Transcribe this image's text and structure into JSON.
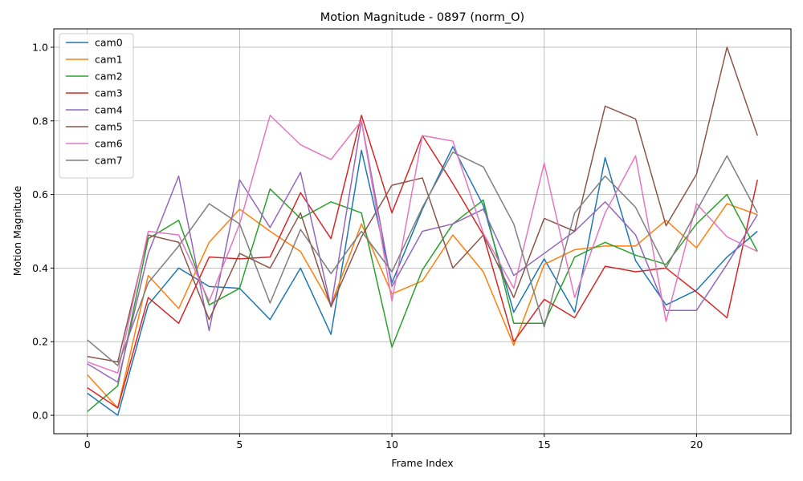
{
  "chart_data": {
    "type": "line",
    "title": "Motion Magnitude - 0897 (norm_O)",
    "xlabel": "Frame Index",
    "ylabel": "Motion Magnitude",
    "xlim": [
      -1.1,
      23.1
    ],
    "ylim": [
      -0.05,
      1.05
    ],
    "xticks": [
      0,
      5,
      10,
      15,
      20
    ],
    "yticks": [
      0.0,
      0.2,
      0.4,
      0.6,
      0.8,
      1.0
    ],
    "xtick_labels": [
      "0",
      "5",
      "10",
      "15",
      "20"
    ],
    "ytick_labels": [
      "0.0",
      "0.2",
      "0.4",
      "0.6",
      "0.8",
      "1.0"
    ],
    "grid": true,
    "legend_position": "top-left",
    "x": [
      0,
      1,
      2,
      3,
      4,
      5,
      6,
      7,
      8,
      9,
      10,
      11,
      12,
      13,
      14,
      15,
      16,
      17,
      18,
      19,
      20,
      21,
      22
    ],
    "series": [
      {
        "name": "cam0",
        "color": "#1f77b4",
        "values": [
          0.06,
          0.0,
          0.3,
          0.4,
          0.35,
          0.345,
          0.26,
          0.4,
          0.22,
          0.72,
          0.36,
          0.56,
          0.73,
          0.57,
          0.28,
          0.425,
          0.28,
          0.7,
          0.42,
          0.3,
          0.34,
          0.43,
          0.5
        ]
      },
      {
        "name": "cam1",
        "color": "#ff7f0e",
        "values": [
          0.11,
          0.02,
          0.38,
          0.29,
          0.47,
          0.56,
          0.5,
          0.445,
          0.3,
          0.52,
          0.33,
          0.365,
          0.49,
          0.39,
          0.19,
          0.41,
          0.45,
          0.46,
          0.46,
          0.53,
          0.455,
          0.575,
          0.545
        ]
      },
      {
        "name": "cam2",
        "color": "#2ca02c",
        "values": [
          0.01,
          0.08,
          0.48,
          0.53,
          0.3,
          0.345,
          0.615,
          0.535,
          0.58,
          0.55,
          0.185,
          0.395,
          0.52,
          0.585,
          0.25,
          0.25,
          0.43,
          0.47,
          0.435,
          0.41,
          0.52,
          0.6,
          0.445
        ]
      },
      {
        "name": "cam3",
        "color": "#d62728",
        "values": [
          0.075,
          0.02,
          0.32,
          0.25,
          0.43,
          0.425,
          0.43,
          0.605,
          0.48,
          0.815,
          0.55,
          0.76,
          0.63,
          0.49,
          0.2,
          0.315,
          0.265,
          0.405,
          0.39,
          0.4,
          0.335,
          0.265,
          0.64
        ]
      },
      {
        "name": "cam4",
        "color": "#9467bd",
        "values": [
          0.14,
          0.09,
          0.44,
          0.65,
          0.23,
          0.64,
          0.51,
          0.66,
          0.295,
          0.8,
          0.35,
          0.5,
          0.52,
          0.56,
          0.38,
          0.44,
          0.5,
          0.58,
          0.49,
          0.285,
          0.285,
          0.41,
          0.545
        ]
      },
      {
        "name": "cam5",
        "color": "#8c564b",
        "values": [
          0.16,
          0.145,
          0.49,
          0.47,
          0.26,
          0.44,
          0.4,
          0.55,
          0.295,
          0.485,
          0.625,
          0.645,
          0.4,
          0.49,
          0.32,
          0.535,
          0.5,
          0.84,
          0.805,
          0.515,
          0.655,
          1.0,
          0.76
        ]
      },
      {
        "name": "cam6",
        "color": "#e377c2",
        "values": [
          0.145,
          0.115,
          0.5,
          0.49,
          0.31,
          0.52,
          0.815,
          0.735,
          0.695,
          0.8,
          0.31,
          0.76,
          0.745,
          0.495,
          0.345,
          0.685,
          0.32,
          0.55,
          0.705,
          0.255,
          0.575,
          0.485,
          0.445
        ]
      },
      {
        "name": "cam7",
        "color": "#7f7f7f",
        "values": [
          0.205,
          0.135,
          0.36,
          0.46,
          0.575,
          0.52,
          0.305,
          0.505,
          0.385,
          0.5,
          0.39,
          0.565,
          0.715,
          0.675,
          0.52,
          0.24,
          0.55,
          0.65,
          0.565,
          0.4,
          0.555,
          0.705,
          0.55
        ]
      }
    ]
  }
}
